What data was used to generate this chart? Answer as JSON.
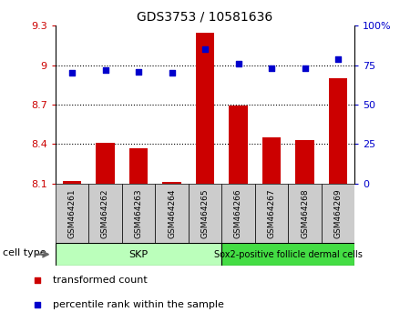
{
  "title": "GDS3753 / 10581636",
  "samples": [
    "GSM464261",
    "GSM464262",
    "GSM464263",
    "GSM464264",
    "GSM464265",
    "GSM464266",
    "GSM464267",
    "GSM464268",
    "GSM464269"
  ],
  "transformed_count": [
    8.12,
    8.41,
    8.37,
    8.11,
    9.25,
    8.69,
    8.45,
    8.43,
    8.9
  ],
  "percentile_rank": [
    70,
    72,
    71,
    70,
    85,
    76,
    73,
    73,
    79
  ],
  "bar_color": "#cc0000",
  "dot_color": "#0000cc",
  "ylim_left": [
    8.1,
    9.3
  ],
  "ylim_right": [
    0,
    100
  ],
  "yticks_left": [
    8.1,
    8.4,
    8.7,
    9.0,
    9.3
  ],
  "yticks_right": [
    0,
    25,
    50,
    75,
    100
  ],
  "ytick_labels_left": [
    "8.1",
    "8.4",
    "8.7",
    "9",
    "9.3"
  ],
  "ytick_labels_right": [
    "0",
    "25",
    "50",
    "75",
    "100%"
  ],
  "hlines": [
    9.0,
    8.7,
    8.4
  ],
  "skp_count": 5,
  "sox2_count": 4,
  "skp_label": "SKP",
  "sox2_label": "Sox2-positive follicle dermal cells",
  "skp_color": "#bbffbb",
  "sox2_color": "#44dd44",
  "xtick_bg_color": "#cccccc",
  "cell_type_label": "cell type",
  "legend_label_count": "transformed count",
  "legend_label_pct": "percentile rank within the sample",
  "background_color": "#ffffff"
}
